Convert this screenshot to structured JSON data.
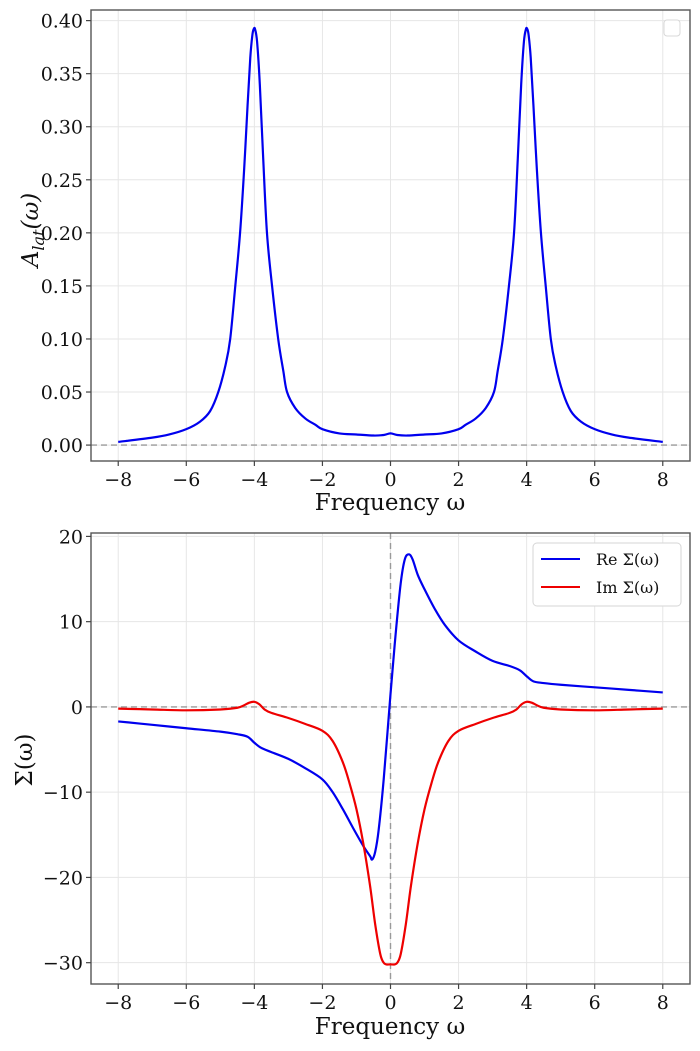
{
  "chart_data": [
    {
      "type": "line",
      "title": "",
      "xlabel": "Frequency ω",
      "ylabel": "A_lat(ω)",
      "ylabel_main": "A",
      "ylabel_sub": "lat",
      "ylabel_arg": "(ω)",
      "xlim": [
        -8.8,
        8.8
      ],
      "ylim": [
        -0.015,
        0.41
      ],
      "xticks": [
        -8,
        -6,
        -4,
        -2,
        0,
        2,
        4,
        6,
        8
      ],
      "xtick_labels": [
        "−8",
        "−6",
        "−4",
        "−2",
        "0",
        "2",
        "4",
        "6",
        "8"
      ],
      "yticks": [
        0.0,
        0.05,
        0.1,
        0.15,
        0.2,
        0.25,
        0.3,
        0.35,
        0.4
      ],
      "ytick_labels": [
        "0.00",
        "0.05",
        "0.10",
        "0.15",
        "0.20",
        "0.25",
        "0.30",
        "0.35",
        "0.40"
      ],
      "grid": true,
      "reference_lines": {
        "horizontal": [
          0
        ],
        "vertical": []
      },
      "legend": {
        "placement": "top-right",
        "entries": []
      },
      "series": [
        {
          "name": "A_lat",
          "color": "#0000ee",
          "x": [
            -8.0,
            -7.0,
            -6.5,
            -6.0,
            -5.6,
            -5.3,
            -5.06,
            -4.85,
            -4.71,
            -4.56,
            -4.42,
            -4.3,
            -4.2,
            -4.12,
            -4.06,
            -4.02,
            -3.98,
            -3.92,
            -3.84,
            -3.74,
            -3.63,
            -3.48,
            -3.3,
            -3.15,
            -3.04,
            -2.8,
            -2.5,
            -2.2,
            -2.0,
            -1.5,
            -1.0,
            -0.5,
            -0.2,
            0.0,
            0.2,
            0.5,
            1.0,
            1.5,
            2.0,
            2.2,
            2.5,
            2.8,
            3.04,
            3.15,
            3.3,
            3.48,
            3.63,
            3.74,
            3.84,
            3.92,
            3.98,
            4.02,
            4.06,
            4.12,
            4.2,
            4.3,
            4.42,
            4.56,
            4.71,
            4.85,
            5.06,
            5.3,
            5.6,
            6.0,
            6.5,
            7.0,
            8.0
          ],
          "y": [
            0.003,
            0.007,
            0.01,
            0.015,
            0.022,
            0.032,
            0.05,
            0.075,
            0.1,
            0.15,
            0.2,
            0.26,
            0.32,
            0.365,
            0.386,
            0.392,
            0.392,
            0.38,
            0.34,
            0.27,
            0.2,
            0.15,
            0.1,
            0.07,
            0.05,
            0.035,
            0.025,
            0.019,
            0.015,
            0.011,
            0.01,
            0.009,
            0.0095,
            0.011,
            0.0095,
            0.009,
            0.01,
            0.011,
            0.015,
            0.019,
            0.025,
            0.035,
            0.05,
            0.07,
            0.1,
            0.15,
            0.2,
            0.27,
            0.34,
            0.38,
            0.392,
            0.392,
            0.386,
            0.365,
            0.32,
            0.26,
            0.2,
            0.15,
            0.1,
            0.075,
            0.05,
            0.032,
            0.022,
            0.015,
            0.01,
            0.007,
            0.003
          ]
        }
      ]
    },
    {
      "type": "line",
      "title": "",
      "xlabel": "Frequency ω",
      "ylabel": "Σ(ω)",
      "xlim": [
        -8.8,
        8.8
      ],
      "ylim": [
        -32.5,
        20.4
      ],
      "xticks": [
        -8,
        -6,
        -4,
        -2,
        0,
        2,
        4,
        6,
        8
      ],
      "xtick_labels": [
        "−8",
        "−6",
        "−4",
        "−2",
        "0",
        "2",
        "4",
        "6",
        "8"
      ],
      "yticks": [
        -30,
        -20,
        -10,
        0,
        10,
        20
      ],
      "ytick_labels": [
        "−30",
        "−20",
        "−10",
        "0",
        "10",
        "20"
      ],
      "grid": true,
      "reference_lines": {
        "horizontal": [
          0
        ],
        "vertical": [
          0
        ]
      },
      "legend": {
        "placement": "top-right",
        "entries": [
          "Re Σ(ω)",
          "Im Σ(ω)"
        ]
      },
      "series": [
        {
          "name": "Re Σ(ω)",
          "color": "#0000ee",
          "x": [
            -8.0,
            -7.0,
            -6.0,
            -5.0,
            -4.5,
            -4.2,
            -4.0,
            -3.8,
            -3.5,
            -3.0,
            -2.5,
            -2.0,
            -1.7,
            -1.4,
            -1.1,
            -0.8,
            -0.6,
            -0.54,
            -0.45,
            -0.35,
            -0.2,
            0.0,
            0.15,
            0.3,
            0.42,
            0.54,
            0.65,
            0.8,
            1.0,
            1.3,
            1.6,
            2.0,
            2.5,
            3.0,
            3.5,
            3.8,
            4.0,
            4.2,
            4.5,
            5.0,
            6.0,
            7.0,
            8.0
          ],
          "y": [
            -1.7,
            -2.1,
            -2.5,
            -2.9,
            -3.2,
            -3.5,
            -4.2,
            -4.8,
            -5.3,
            -6.1,
            -7.2,
            -8.5,
            -10.0,
            -12.0,
            -14.2,
            -16.3,
            -17.5,
            -17.9,
            -17.0,
            -14.5,
            -8.5,
            1.5,
            8.5,
            14.5,
            17.3,
            17.9,
            17.3,
            15.5,
            13.8,
            11.5,
            9.6,
            7.8,
            6.5,
            5.4,
            4.8,
            4.3,
            3.6,
            3.0,
            2.8,
            2.6,
            2.3,
            2.0,
            1.7
          ]
        },
        {
          "name": "Im Σ(ω)",
          "color": "#ee0000",
          "x": [
            -8.0,
            -7.0,
            -6.0,
            -5.0,
            -4.5,
            -4.3,
            -4.15,
            -4.0,
            -3.85,
            -3.7,
            -3.5,
            -3.0,
            -2.5,
            -2.0,
            -1.7,
            -1.4,
            -1.2,
            -1.0,
            -0.8,
            -0.6,
            -0.45,
            -0.3,
            -0.2,
            -0.12,
            0.0,
            0.12,
            0.2,
            0.3,
            0.45,
            0.6,
            0.8,
            1.0,
            1.2,
            1.4,
            1.7,
            2.0,
            2.5,
            3.0,
            3.5,
            3.7,
            3.85,
            4.0,
            4.15,
            4.3,
            4.5,
            5.0,
            6.0,
            7.0,
            8.0
          ],
          "y": [
            -0.2,
            -0.3,
            -0.4,
            -0.3,
            -0.1,
            0.2,
            0.5,
            0.6,
            0.3,
            -0.3,
            -0.7,
            -1.3,
            -2.0,
            -2.8,
            -4.0,
            -6.5,
            -9.0,
            -12.0,
            -16.0,
            -21.0,
            -25.5,
            -29.0,
            -30.0,
            -30.2,
            -30.2,
            -30.2,
            -30.0,
            -29.0,
            -25.5,
            -21.0,
            -16.0,
            -12.0,
            -9.0,
            -6.5,
            -4.0,
            -2.8,
            -2.0,
            -1.3,
            -0.7,
            -0.3,
            0.3,
            0.6,
            0.5,
            0.2,
            -0.1,
            -0.3,
            -0.4,
            -0.3,
            -0.2
          ]
        }
      ]
    }
  ]
}
